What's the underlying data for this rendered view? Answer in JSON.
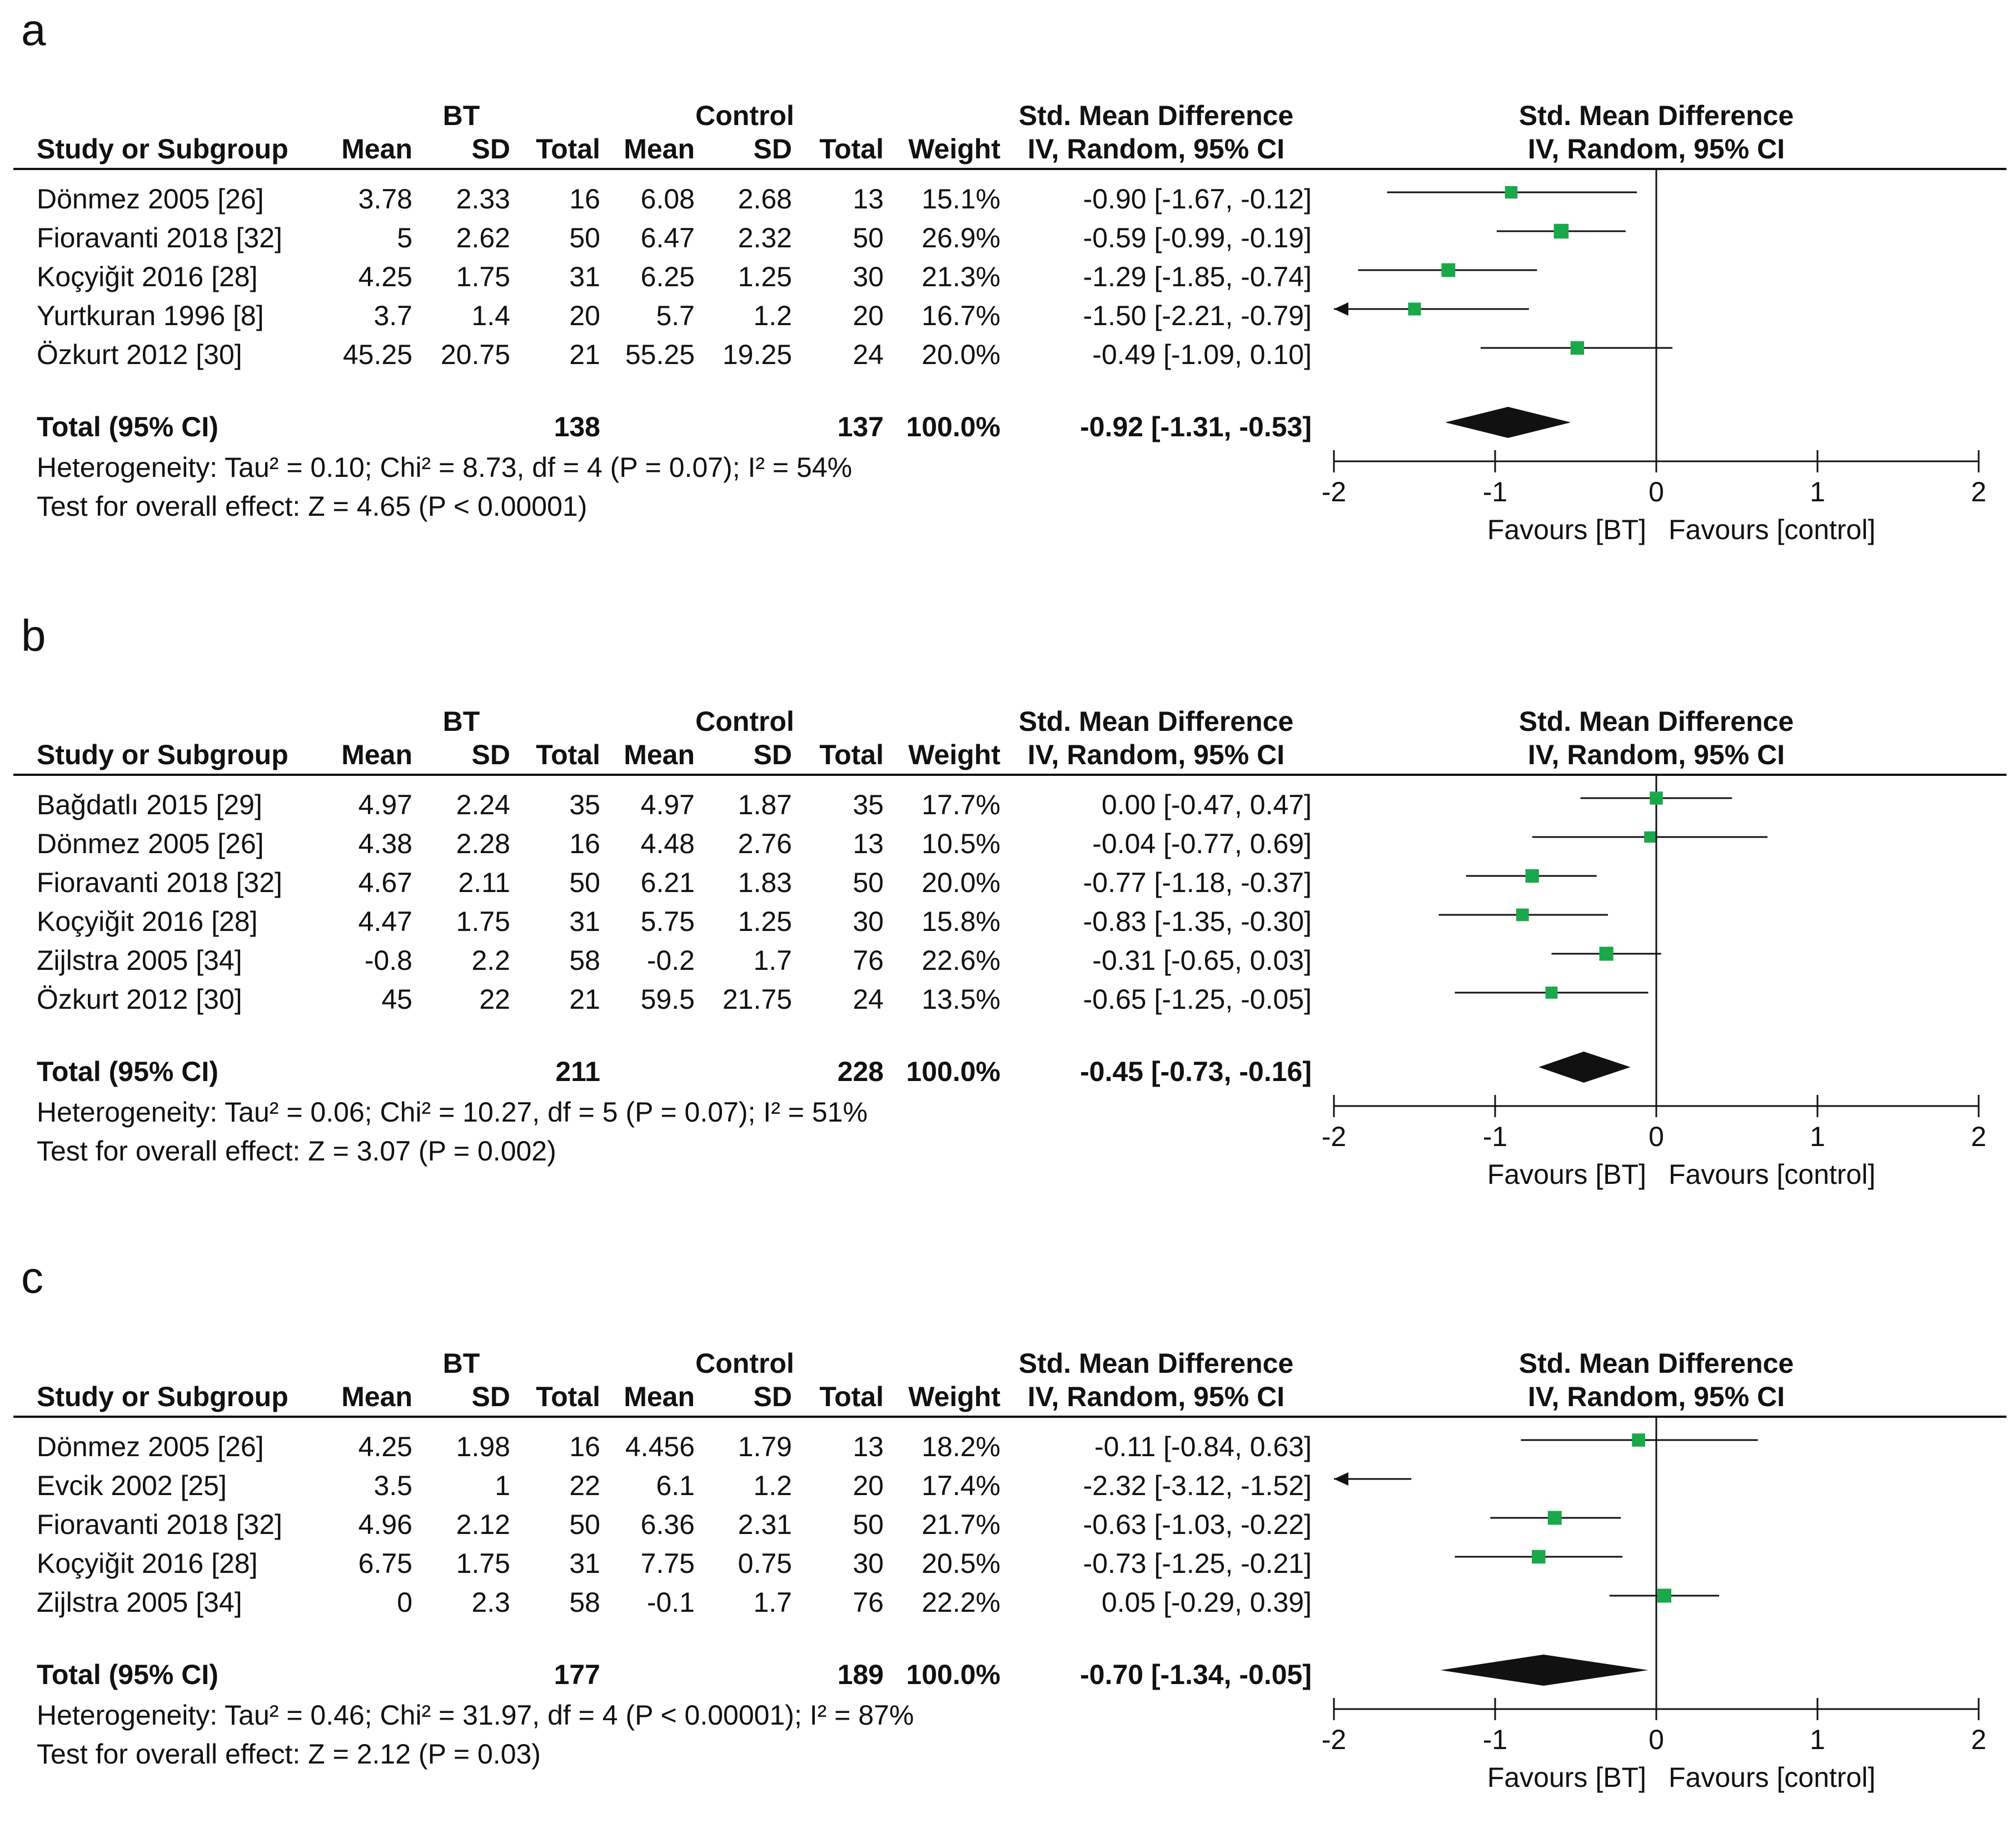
{
  "colors": {
    "marker": "#1aa84a",
    "ink": "#111111"
  },
  "chart_data": [
    {
      "type": "forest",
      "panel_label": "a",
      "group_headers": {
        "bt": "BT",
        "control": "Control",
        "smd_table": "Std. Mean Difference",
        "smd_plot": "Std. Mean Difference"
      },
      "column_headers": {
        "study": "Study or Subgroup",
        "mean1": "Mean",
        "sd1": "SD",
        "total1": "Total",
        "mean2": "Mean",
        "sd2": "SD",
        "total2": "Total",
        "weight": "Weight",
        "method_table": "IV, Random, 95% CI",
        "method_plot": "IV, Random, 95% CI"
      },
      "studies": [
        {
          "name": "Dönmez 2005 [26]",
          "bt_mean": "3.78",
          "bt_sd": "2.33",
          "bt_total": "16",
          "ctrl_mean": "6.08",
          "ctrl_sd": "2.68",
          "ctrl_total": "13",
          "weight": "15.1%",
          "ci_text": "-0.90 [-1.67, -0.12]",
          "est": -0.9,
          "lo": -1.67,
          "hi": -0.12,
          "w": 15.1
        },
        {
          "name": "Fioravanti 2018 [32]",
          "bt_mean": "5",
          "bt_sd": "2.62",
          "bt_total": "50",
          "ctrl_mean": "6.47",
          "ctrl_sd": "2.32",
          "ctrl_total": "50",
          "weight": "26.9%",
          "ci_text": "-0.59 [-0.99, -0.19]",
          "est": -0.59,
          "lo": -0.99,
          "hi": -0.19,
          "w": 26.9
        },
        {
          "name": "Koçyiğit 2016 [28]",
          "bt_mean": "4.25",
          "bt_sd": "1.75",
          "bt_total": "31",
          "ctrl_mean": "6.25",
          "ctrl_sd": "1.25",
          "ctrl_total": "30",
          "weight": "21.3%",
          "ci_text": "-1.29 [-1.85, -0.74]",
          "est": -1.29,
          "lo": -1.85,
          "hi": -0.74,
          "w": 21.3
        },
        {
          "name": "Yurtkuran 1996 [8]",
          "bt_mean": "3.7",
          "bt_sd": "1.4",
          "bt_total": "20",
          "ctrl_mean": "5.7",
          "ctrl_sd": "1.2",
          "ctrl_total": "20",
          "weight": "16.7%",
          "ci_text": "-1.50 [-2.21, -0.79]",
          "est": -1.5,
          "lo": -2.21,
          "hi": -0.79,
          "w": 16.7
        },
        {
          "name": "Özkurt 2012 [30]",
          "bt_mean": "45.25",
          "bt_sd": "20.75",
          "bt_total": "21",
          "ctrl_mean": "55.25",
          "ctrl_sd": "19.25",
          "ctrl_total": "24",
          "weight": "20.0%",
          "ci_text": "-0.49 [-1.09, 0.10]",
          "est": -0.49,
          "lo": -1.09,
          "hi": 0.1,
          "w": 20.0
        }
      ],
      "total": {
        "label": "Total (95% CI)",
        "bt_total": "138",
        "ctrl_total": "137",
        "weight": "100.0%",
        "ci_text": "-0.92 [-1.31, -0.53]",
        "est": -0.92,
        "lo": -1.31,
        "hi": -0.53
      },
      "heterogeneity": "Heterogeneity: Tau² = 0.10; Chi² = 8.73, df = 4 (P = 0.07); I² = 54%",
      "overall_effect": "Test for overall effect: Z = 4.65 (P < 0.00001)",
      "xlim": [
        -2,
        2
      ],
      "ticks": [
        -2,
        -1,
        0,
        1,
        2
      ],
      "tick_labels": [
        "-2",
        "-1",
        "0",
        "1",
        "2"
      ],
      "favours_left": "Favours [BT]",
      "favours_right": "Favours [control]"
    },
    {
      "type": "forest",
      "panel_label": "b",
      "group_headers": {
        "bt": "BT",
        "control": "Control",
        "smd_table": "Std. Mean Difference",
        "smd_plot": "Std. Mean Difference"
      },
      "column_headers": {
        "study": "Study or Subgroup",
        "mean1": "Mean",
        "sd1": "SD",
        "total1": "Total",
        "mean2": "Mean",
        "sd2": "SD",
        "total2": "Total",
        "weight": "Weight",
        "method_table": "IV, Random, 95% CI",
        "method_plot": "IV, Random, 95% CI"
      },
      "studies": [
        {
          "name": "Bağdatlı 2015 [29]",
          "bt_mean": "4.97",
          "bt_sd": "2.24",
          "bt_total": "35",
          "ctrl_mean": "4.97",
          "ctrl_sd": "1.87",
          "ctrl_total": "35",
          "weight": "17.7%",
          "ci_text": "0.00 [-0.47, 0.47]",
          "est": 0.0,
          "lo": -0.47,
          "hi": 0.47,
          "w": 17.7
        },
        {
          "name": "Dönmez 2005 [26]",
          "bt_mean": "4.38",
          "bt_sd": "2.28",
          "bt_total": "16",
          "ctrl_mean": "4.48",
          "ctrl_sd": "2.76",
          "ctrl_total": "13",
          "weight": "10.5%",
          "ci_text": "-0.04 [-0.77, 0.69]",
          "est": -0.04,
          "lo": -0.77,
          "hi": 0.69,
          "w": 10.5
        },
        {
          "name": "Fioravanti 2018 [32]",
          "bt_mean": "4.67",
          "bt_sd": "2.11",
          "bt_total": "50",
          "ctrl_mean": "6.21",
          "ctrl_sd": "1.83",
          "ctrl_total": "50",
          "weight": "20.0%",
          "ci_text": "-0.77 [-1.18, -0.37]",
          "est": -0.77,
          "lo": -1.18,
          "hi": -0.37,
          "w": 20.0
        },
        {
          "name": "Koçyiğit 2016 [28]",
          "bt_mean": "4.47",
          "bt_sd": "1.75",
          "bt_total": "31",
          "ctrl_mean": "5.75",
          "ctrl_sd": "1.25",
          "ctrl_total": "30",
          "weight": "15.8%",
          "ci_text": "-0.83 [-1.35, -0.30]",
          "est": -0.83,
          "lo": -1.35,
          "hi": -0.3,
          "w": 15.8
        },
        {
          "name": "Zijlstra 2005 [34]",
          "bt_mean": "-0.8",
          "bt_sd": "2.2",
          "bt_total": "58",
          "ctrl_mean": "-0.2",
          "ctrl_sd": "1.7",
          "ctrl_total": "76",
          "weight": "22.6%",
          "ci_text": "-0.31 [-0.65, 0.03]",
          "est": -0.31,
          "lo": -0.65,
          "hi": 0.03,
          "w": 22.6
        },
        {
          "name": "Özkurt 2012 [30]",
          "bt_mean": "45",
          "bt_sd": "22",
          "bt_total": "21",
          "ctrl_mean": "59.5",
          "ctrl_sd": "21.75",
          "ctrl_total": "24",
          "weight": "13.5%",
          "ci_text": "-0.65 [-1.25, -0.05]",
          "est": -0.65,
          "lo": -1.25,
          "hi": -0.05,
          "w": 13.5
        }
      ],
      "total": {
        "label": "Total (95% CI)",
        "bt_total": "211",
        "ctrl_total": "228",
        "weight": "100.0%",
        "ci_text": "-0.45 [-0.73, -0.16]",
        "est": -0.45,
        "lo": -0.73,
        "hi": -0.16
      },
      "heterogeneity": "Heterogeneity: Tau² = 0.06; Chi² = 10.27, df = 5 (P = 0.07); I² = 51%",
      "overall_effect": "Test for overall effect: Z = 3.07 (P = 0.002)",
      "xlim": [
        -2,
        2
      ],
      "ticks": [
        -2,
        -1,
        0,
        1,
        2
      ],
      "tick_labels": [
        "-2",
        "-1",
        "0",
        "1",
        "2"
      ],
      "favours_left": "Favours [BT]",
      "favours_right": "Favours [control]"
    },
    {
      "type": "forest",
      "panel_label": "c",
      "group_headers": {
        "bt": "BT",
        "control": "Control",
        "smd_table": "Std. Mean Difference",
        "smd_plot": "Std. Mean Difference"
      },
      "column_headers": {
        "study": "Study or Subgroup",
        "mean1": "Mean",
        "sd1": "SD",
        "total1": "Total",
        "mean2": "Mean",
        "sd2": "SD",
        "total2": "Total",
        "weight": "Weight",
        "method_table": "IV, Random, 95% CI",
        "method_plot": "IV, Random, 95% CI"
      },
      "studies": [
        {
          "name": "Dönmez 2005 [26]",
          "bt_mean": "4.25",
          "bt_sd": "1.98",
          "bt_total": "16",
          "ctrl_mean": "4.456",
          "ctrl_sd": "1.79",
          "ctrl_total": "13",
          "weight": "18.2%",
          "ci_text": "-0.11 [-0.84, 0.63]",
          "est": -0.11,
          "lo": -0.84,
          "hi": 0.63,
          "w": 18.2
        },
        {
          "name": "Evcik 2002 [25]",
          "bt_mean": "3.5",
          "bt_sd": "1",
          "bt_total": "22",
          "ctrl_mean": "6.1",
          "ctrl_sd": "1.2",
          "ctrl_total": "20",
          "weight": "17.4%",
          "ci_text": "-2.32 [-3.12, -1.52]",
          "est": -2.32,
          "lo": -3.12,
          "hi": -1.52,
          "w": 17.4
        },
        {
          "name": "Fioravanti 2018 [32]",
          "bt_mean": "4.96",
          "bt_sd": "2.12",
          "bt_total": "50",
          "ctrl_mean": "6.36",
          "ctrl_sd": "2.31",
          "ctrl_total": "50",
          "weight": "21.7%",
          "ci_text": "-0.63 [-1.03, -0.22]",
          "est": -0.63,
          "lo": -1.03,
          "hi": -0.22,
          "w": 21.7
        },
        {
          "name": "Koçyiğit 2016 [28]",
          "bt_mean": "6.75",
          "bt_sd": "1.75",
          "bt_total": "31",
          "ctrl_mean": "7.75",
          "ctrl_sd": "0.75",
          "ctrl_total": "30",
          "weight": "20.5%",
          "ci_text": "-0.73 [-1.25, -0.21]",
          "est": -0.73,
          "lo": -1.25,
          "hi": -0.21,
          "w": 20.5
        },
        {
          "name": "Zijlstra 2005 [34]",
          "bt_mean": "0",
          "bt_sd": "2.3",
          "bt_total": "58",
          "ctrl_mean": "-0.1",
          "ctrl_sd": "1.7",
          "ctrl_total": "76",
          "weight": "22.2%",
          "ci_text": "0.05 [-0.29, 0.39]",
          "est": 0.05,
          "lo": -0.29,
          "hi": 0.39,
          "w": 22.2
        }
      ],
      "total": {
        "label": "Total (95% CI)",
        "bt_total": "177",
        "ctrl_total": "189",
        "weight": "100.0%",
        "ci_text": "-0.70 [-1.34, -0.05]",
        "est": -0.7,
        "lo": -1.34,
        "hi": -0.05
      },
      "heterogeneity": "Heterogeneity: Tau² = 0.46; Chi² = 31.97, df = 4 (P < 0.00001); I² = 87%",
      "overall_effect": "Test for overall effect: Z = 2.12 (P = 0.03)",
      "xlim": [
        -2,
        2
      ],
      "ticks": [
        -2,
        -1,
        0,
        1,
        2
      ],
      "tick_labels": [
        "-2",
        "-1",
        "0",
        "1",
        "2"
      ],
      "favours_left": "Favours [BT]",
      "favours_right": "Favours [control]"
    }
  ]
}
